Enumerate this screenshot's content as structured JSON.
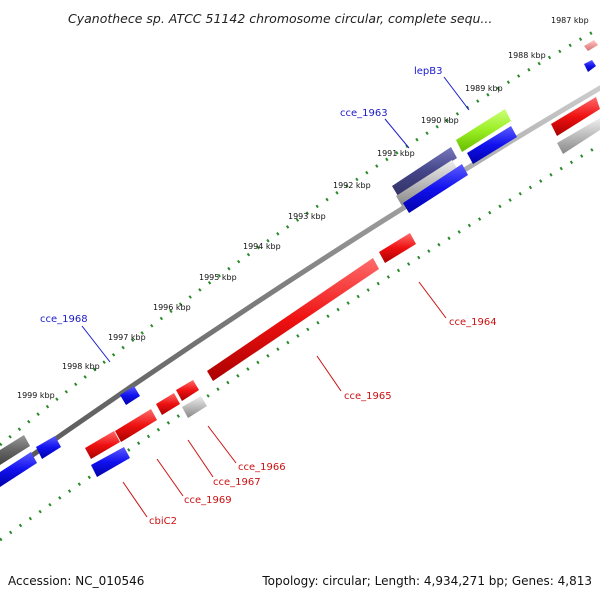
{
  "title": "Cyanothece sp. ATCC 51142 chromosome circular, complete sequ...",
  "footer": {
    "accession": "Accession: NC_010546",
    "topology": "Topology: circular; Length: 4,934,271 bp; Genes: 4,813"
  },
  "colors": {
    "forward_strand": "#e01010",
    "reverse_strand": "#1010e0",
    "backbone": "#808080",
    "tick": "#2a8a2a",
    "highlight_green": "#99ee22",
    "gray_gene": "#aaaaaa",
    "label_blue": "#1a1acc",
    "label_red": "#cc1111"
  },
  "ticks": [
    {
      "label": "1987 kbp"
    },
    {
      "label": "1988 kbp"
    },
    {
      "label": "1989 kbp"
    },
    {
      "label": "1990 kbp"
    },
    {
      "label": "1991 kbp"
    },
    {
      "label": "1992 kbp"
    },
    {
      "label": "1993 kbp"
    },
    {
      "label": "1994 kbp"
    },
    {
      "label": "1995 kbp"
    },
    {
      "label": "1996 kbp"
    },
    {
      "label": "1997 kbp"
    },
    {
      "label": "1998 kbp"
    },
    {
      "label": "1999 kbp"
    }
  ],
  "gene_labels": [
    {
      "name": "lepB3",
      "color": "blue"
    },
    {
      "name": "cce_1963",
      "color": "blue"
    },
    {
      "name": "cce_1968",
      "color": "blue"
    },
    {
      "name": "cce_1964",
      "color": "red"
    },
    {
      "name": "cce_1965",
      "color": "red"
    },
    {
      "name": "cce_1966",
      "color": "red"
    },
    {
      "name": "cce_1967",
      "color": "red"
    },
    {
      "name": "cce_1969",
      "color": "red"
    },
    {
      "name": "cbiC2",
      "color": "red"
    }
  ]
}
